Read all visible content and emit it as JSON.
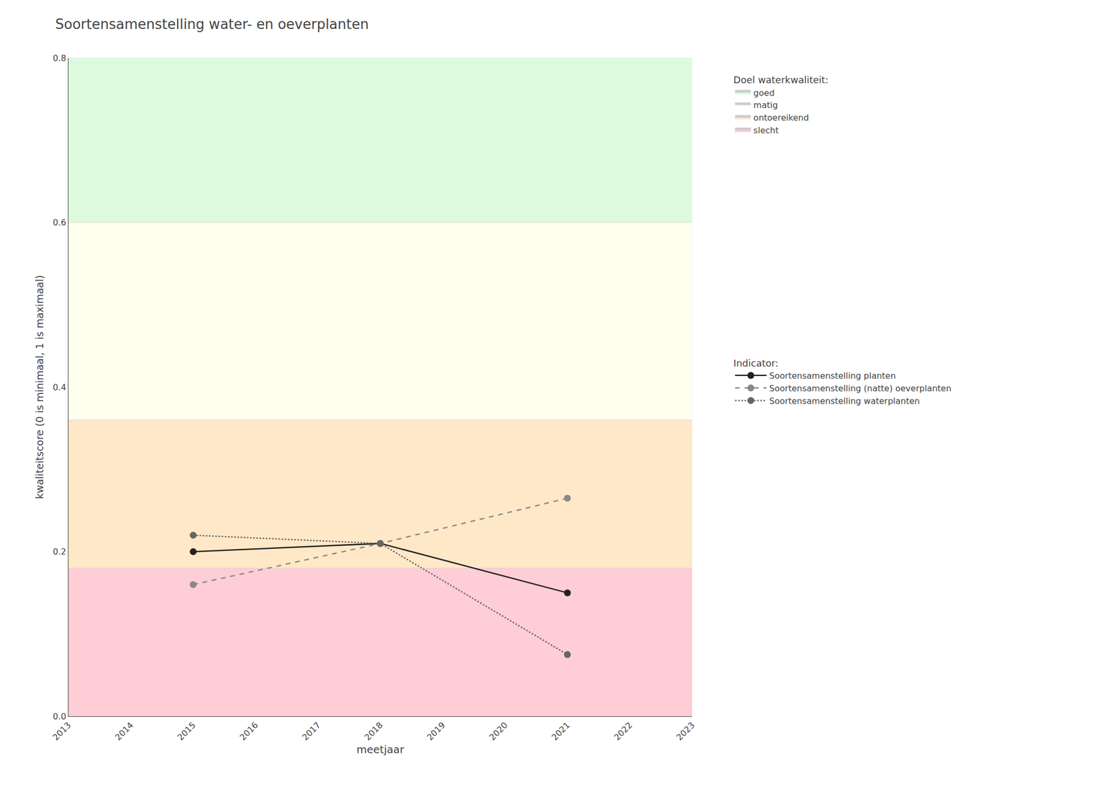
{
  "chart_data": {
    "type": "line",
    "title": "Soortensamenstelling water- en oeverplanten",
    "x_label": "meetjaar",
    "y_label": "kwaliteitscore (0 is minimaal, 1 is maximaal)",
    "xlim": [
      2013,
      2023
    ],
    "ylim": [
      0,
      0.8
    ],
    "xticks": [
      2013,
      2014,
      2015,
      2016,
      2017,
      2018,
      2019,
      2020,
      2021,
      2022,
      2023
    ],
    "yticks": [
      {
        "value": 0,
        "label": "0.0"
      },
      0.2,
      0.4,
      0.6,
      0.8
    ],
    "grid": true,
    "legend": "right",
    "zone_legend_title": "Doel waterkwaliteit:",
    "series_legend_title": "Indicator:",
    "zones": [
      {
        "ymin": 0.0,
        "ymax": 0.18,
        "color": "#FFCDD5",
        "label": "slecht"
      },
      {
        "ymin": 0.18,
        "ymax": 0.36,
        "color": "#FFE8C8",
        "label": "ontoereikend"
      },
      {
        "ymin": 0.36,
        "ymax": 0.6,
        "color": "#FFFFF0",
        "label": "matig"
      },
      {
        "ymin": 0.6,
        "ymax": 0.8,
        "color": "#DDFADE",
        "label": "goed"
      }
    ],
    "series": [
      {
        "name": "Soortensamenstelling planten",
        "x": [
          2015,
          2018,
          2021
        ],
        "values": [
          0.2,
          0.21,
          0.15
        ],
        "color": "#222222",
        "line_style": "solid",
        "marker": "circle"
      },
      {
        "name": "Soortensamenstelling (natte) oeverplanten",
        "x": [
          2015,
          2018,
          2021
        ],
        "values": [
          0.16,
          0.21,
          0.265
        ],
        "color": "#888888",
        "line_style": "dashed",
        "marker": "circle"
      },
      {
        "name": "Soortensamenstelling waterplanten",
        "x": [
          2015,
          2018,
          2021
        ],
        "values": [
          0.22,
          0.21,
          0.075
        ],
        "color": "#666666",
        "line_style": "dotted",
        "marker": "circle"
      }
    ]
  }
}
